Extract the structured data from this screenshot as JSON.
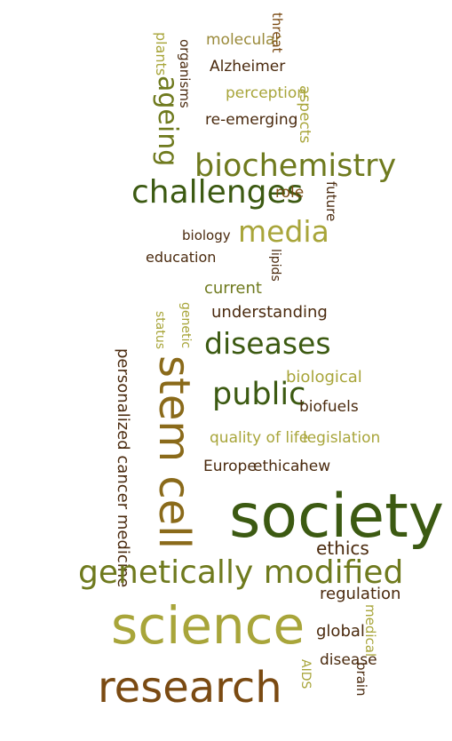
{
  "palette": {
    "olive": "#a8a53a",
    "dark_olive": "#6f7a1e",
    "forest": "#3c5a12",
    "brown": "#7a4a12",
    "dark_brown": "#4a2a0e",
    "khaki": "#9a8a3a",
    "bronze": "#8a6a1a"
  },
  "words": [
    {
      "id": "molecular",
      "text": "molecular",
      "color": "khaki"
    },
    {
      "id": "threat",
      "text": "threat",
      "color": "brown"
    },
    {
      "id": "plants",
      "text": "plants",
      "color": "olive"
    },
    {
      "id": "organisms",
      "text": "organisms",
      "color": "dark_brown"
    },
    {
      "id": "alzheimer",
      "text": "Alzheimer",
      "color": "dark_brown"
    },
    {
      "id": "ageing",
      "text": "ageing",
      "color": "dark_olive"
    },
    {
      "id": "perception",
      "text": "perception",
      "color": "olive"
    },
    {
      "id": "aspects",
      "text": "aspects",
      "color": "olive"
    },
    {
      "id": "re-emerging",
      "text": "re-emerging",
      "color": "dark_brown"
    },
    {
      "id": "biochemistry",
      "text": "biochemistry",
      "color": "dark_olive"
    },
    {
      "id": "challenges",
      "text": "challenges",
      "color": "forest"
    },
    {
      "id": "role",
      "text": "role",
      "color": "brown"
    },
    {
      "id": "future",
      "text": "future",
      "color": "dark_brown"
    },
    {
      "id": "media",
      "text": "media",
      "color": "olive"
    },
    {
      "id": "biology",
      "text": "biology",
      "color": "dark_brown"
    },
    {
      "id": "education",
      "text": "education",
      "color": "dark_brown"
    },
    {
      "id": "lipids",
      "text": "lipids",
      "color": "dark_brown"
    },
    {
      "id": "current",
      "text": "current",
      "color": "dark_olive"
    },
    {
      "id": "genetic",
      "text": "genetic",
      "color": "olive"
    },
    {
      "id": "status",
      "text": "status",
      "color": "olive"
    },
    {
      "id": "understanding",
      "text": "understanding",
      "color": "dark_brown"
    },
    {
      "id": "diseases",
      "text": "diseases",
      "color": "forest"
    },
    {
      "id": "personalized-cancer-medicine",
      "text": "personalized cancer medicine",
      "color": "dark_brown"
    },
    {
      "id": "stem-cell",
      "text": "stem cell",
      "color": "bronze"
    },
    {
      "id": "biological",
      "text": "biological",
      "color": "olive"
    },
    {
      "id": "public",
      "text": "public",
      "color": "forest"
    },
    {
      "id": "biofuels",
      "text": "biofuels",
      "color": "dark_brown"
    },
    {
      "id": "quality-of-life",
      "text": "quality of life",
      "color": "olive"
    },
    {
      "id": "legislation",
      "text": "legislation",
      "color": "olive"
    },
    {
      "id": "europe",
      "text": "Europe",
      "color": "dark_brown"
    },
    {
      "id": "ethical",
      "text": "ethical",
      "color": "dark_brown"
    },
    {
      "id": "new",
      "text": "new",
      "color": "dark_brown"
    },
    {
      "id": "society",
      "text": "society",
      "color": "forest"
    },
    {
      "id": "ethics",
      "text": "ethics",
      "color": "dark_brown"
    },
    {
      "id": "genetically-modified",
      "text": "genetically modified",
      "color": "dark_olive"
    },
    {
      "id": "regulation",
      "text": "regulation",
      "color": "dark_brown"
    },
    {
      "id": "science",
      "text": "science",
      "color": "olive"
    },
    {
      "id": "medical",
      "text": "medical",
      "color": "olive"
    },
    {
      "id": "global",
      "text": "global",
      "color": "dark_brown"
    },
    {
      "id": "aids",
      "text": "AIDS",
      "color": "olive"
    },
    {
      "id": "disease",
      "text": "disease",
      "color": "dark_brown"
    },
    {
      "id": "brain",
      "text": "brain",
      "color": "dark_brown"
    },
    {
      "id": "research",
      "text": "research",
      "color": "brown"
    }
  ]
}
